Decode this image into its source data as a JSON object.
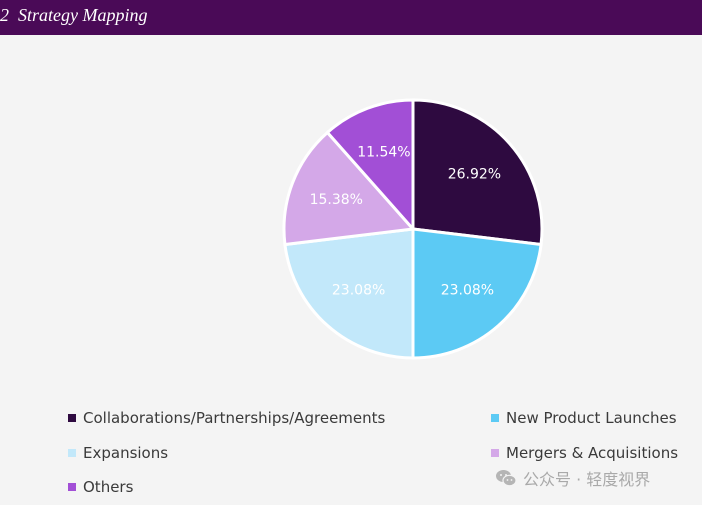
{
  "header": {
    "title": "2  Strategy Mapping",
    "background_color": "#4a0a57"
  },
  "chart_data": {
    "type": "pie",
    "title": "",
    "slices": [
      {
        "name": "Collaborations/Partnerships/Agreements",
        "value": 26.92,
        "label": "26.92%",
        "color": "#2e0a40",
        "label_color": "#ffffff"
      },
      {
        "name": "New Product Launches",
        "value": 23.08,
        "label": "23.08%",
        "color": "#5ccaf4",
        "label_color": "#ffffff"
      },
      {
        "name": "Expansions",
        "value": 23.08,
        "label": "23.08%",
        "color": "#c2e8fa",
        "label_color": "#ffffff"
      },
      {
        "name": "Mergers & Acquisitions",
        "value": 15.38,
        "label": "15.38%",
        "color": "#d4a8e8",
        "label_color": "#ffffff"
      },
      {
        "name": "Others",
        "value": 11.54,
        "label": "11.54%",
        "color": "#a24fd6",
        "label_color": "#ffffff"
      }
    ],
    "start": "12 o'clock",
    "direction": "clockwise",
    "legend_position": "bottom"
  },
  "watermark": {
    "text": "公众号 · 轻度视界",
    "icon": "wechat-icon"
  }
}
